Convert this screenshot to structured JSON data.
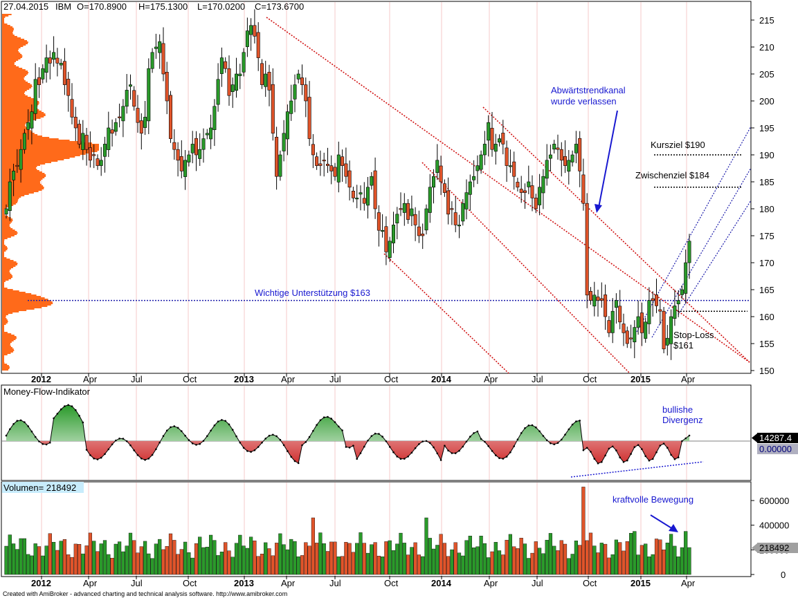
{
  "header": {
    "date": "27.04.2015",
    "symbol": "IBM",
    "open": "O=170.8900",
    "high": "H=175.1300",
    "low": "L=170.0200",
    "close": "C=173.6700"
  },
  "footer": "Created with AmiBroker - advanced charting and technical analysis software. http://www.amibroker.com",
  "colors": {
    "up": "#2a9a2a",
    "down": "#e0542a",
    "volume_profile": "#ff6a1a",
    "annotation": "#1818d0",
    "trend_line": "#d01010",
    "support_line": "#1a1aaa",
    "grid": "#f5c8c8",
    "mf_positive": "#2a9a2a",
    "mf_negative": "#d03030"
  },
  "chart_data": [
    {
      "type": "candlestick",
      "panel": "price",
      "y_ticks": [
        "215",
        "210",
        "205",
        "200",
        "195",
        "190",
        "185",
        "180",
        "175",
        "170",
        "165",
        "160",
        "155",
        "150"
      ],
      "ylim": [
        149,
        217
      ],
      "x_ticks": [
        {
          "label": "2012",
          "bold": true
        },
        {
          "label": "Apr",
          "bold": false
        },
        {
          "label": "Jul",
          "bold": false
        },
        {
          "label": "Oct",
          "bold": false
        },
        {
          "label": "2013",
          "bold": true
        },
        {
          "label": "Apr",
          "bold": false
        },
        {
          "label": "Jul",
          "bold": false
        },
        {
          "label": "Oct",
          "bold": false
        },
        {
          "label": "2014",
          "bold": true
        },
        {
          "label": "Apr",
          "bold": false
        },
        {
          "label": "Jul",
          "bold": false
        },
        {
          "label": "Oct",
          "bold": false
        },
        {
          "label": "2015",
          "bold": true
        },
        {
          "label": "Apr",
          "bold": false
        }
      ],
      "series_weekly_close": [
        180,
        185,
        187,
        188,
        191,
        194,
        196,
        198,
        204,
        203,
        206,
        208,
        207,
        209,
        207,
        207,
        203,
        201,
        197,
        195,
        192,
        194,
        191,
        189,
        190,
        188,
        189,
        192,
        195,
        194,
        196,
        197,
        199,
        202,
        203,
        199,
        196,
        194,
        197,
        206,
        209,
        210,
        211,
        205,
        200,
        193,
        191,
        189,
        187,
        189,
        190,
        192,
        190,
        191,
        193,
        194,
        195,
        199,
        204,
        208,
        206,
        201,
        203,
        205,
        205,
        209,
        213,
        214,
        212,
        208,
        203,
        205,
        202,
        194,
        186,
        190,
        194,
        198,
        200,
        203,
        205,
        203,
        200,
        193,
        190,
        188,
        188,
        189,
        188,
        187,
        186,
        190,
        188,
        186,
        184,
        182,
        182,
        183,
        181,
        184,
        186,
        180,
        176,
        176,
        172,
        174,
        177,
        179,
        180,
        181,
        178,
        180,
        177,
        175,
        175,
        180,
        184,
        186,
        189,
        185,
        183,
        179,
        180,
        177,
        177,
        181,
        183,
        185,
        186,
        188,
        190,
        192,
        196,
        191,
        192,
        193,
        192,
        188,
        188,
        186,
        184,
        183,
        183,
        185,
        182,
        180,
        184,
        186,
        189,
        190,
        192,
        191,
        189,
        188,
        189,
        190,
        192,
        187,
        181,
        164,
        163,
        164,
        163,
        163,
        160,
        157,
        161,
        163,
        159,
        157,
        155,
        156,
        158,
        160,
        157,
        159,
        163,
        163,
        162,
        161,
        154,
        156,
        160,
        162,
        163,
        165,
        170,
        174
      ],
      "annotations": [
        "Abwärtstrendkanal",
        "wurde verlassen",
        "Kursziel $190",
        "Zwischenziel $184",
        "Wichtige Unterstützung $163",
        "Stop-Loss",
        "$161"
      ],
      "levels": {
        "kursziel": 190,
        "zwischenziel": 184,
        "support": 163,
        "stop_loss": 161
      }
    },
    {
      "type": "area",
      "panel": "money_flow",
      "title": "Money-Flow-Indikator",
      "value_label": "14287.4",
      "zero_label": "0.00000",
      "annotations": [
        "bullishe",
        "Divergenz"
      ]
    },
    {
      "type": "bar",
      "panel": "volume",
      "title": "Volumen= 218492",
      "value_label": "218492",
      "y_ticks": [
        "600000",
        "400000",
        "200000",
        "0"
      ],
      "ylim": [
        0,
        720000
      ],
      "annotation": "kraftvolle Bewegung"
    }
  ]
}
